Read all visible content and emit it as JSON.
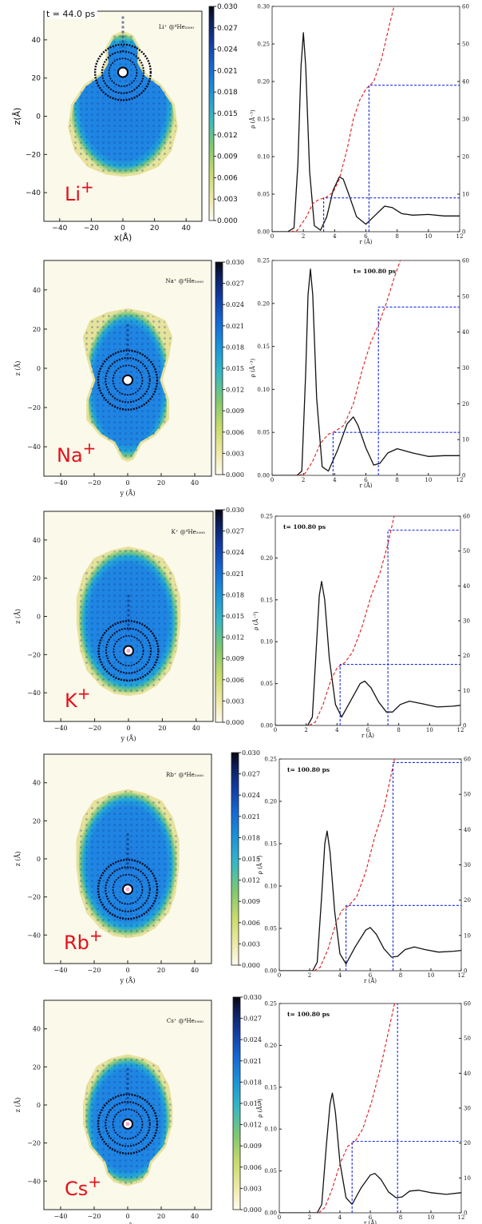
{
  "chart_data": [
    {
      "panel": 1,
      "type": "heatmap",
      "ion_label": "Li+",
      "label_inset": "Li⁺ @⁴He₂₀₀₀",
      "time_label": "t = 44.0 ps",
      "xlabel": "x(Å)",
      "ylabel": "z(Å)",
      "xticks": [
        "−40",
        "−20",
        "0",
        "20",
        "40"
      ],
      "yticks": [
        "40",
        "20",
        "0",
        "−20",
        "−40"
      ],
      "colorbar_ticks": [
        "0.030",
        "0.027",
        "0.024",
        "0.021",
        "0.018",
        "0.015",
        "0.012",
        "0.009",
        "0.006",
        "0.003",
        "0.000"
      ],
      "ion_position_z": 23,
      "droplet_shape": "pear"
    },
    {
      "panel": 1,
      "type": "line",
      "title": "",
      "time_label": "",
      "xlabel": "r (Å)",
      "ylabel": "ρ (Å⁻³)",
      "xlim": [
        0,
        12
      ],
      "ylim": [
        0,
        0.3
      ],
      "y2lim": [
        0,
        60
      ],
      "xticks": [
        "0",
        "2",
        "4",
        "6",
        "8",
        "10",
        "12"
      ],
      "yticks": [
        "0.00",
        "0.05",
        "0.10",
        "0.15",
        "0.20",
        "0.25",
        "0.30"
      ],
      "y2ticks": [
        "0",
        "10",
        "20",
        "30",
        "40",
        "50",
        "60"
      ],
      "series": [
        {
          "color": "#111111",
          "style": "solid",
          "x": [
            0,
            1,
            1.4,
            1.65,
            1.85,
            2.0,
            2.15,
            2.4,
            2.7,
            3.1,
            3.5,
            3.9,
            4.3,
            4.55,
            4.9,
            5.4,
            6.0,
            6.6,
            7.2,
            7.7,
            8.3,
            9.0,
            10,
            11,
            12
          ],
          "y": [
            0,
            0,
            0.005,
            0.09,
            0.22,
            0.265,
            0.22,
            0.08,
            0.008,
            0.002,
            0.02,
            0.055,
            0.073,
            0.07,
            0.05,
            0.02,
            0.01,
            0.022,
            0.034,
            0.032,
            0.024,
            0.022,
            0.023,
            0.021,
            0.021
          ]
        },
        {
          "color": "#e01a1a",
          "style": "dashed",
          "axis": "right",
          "x": [
            1.2,
            1.6,
            2.2,
            2.6,
            3.0,
            3.4,
            3.9,
            4.3,
            4.8,
            5.2,
            5.6,
            6.0,
            6.5,
            7.0,
            7.5,
            7.8
          ],
          "y": [
            0,
            0.3,
            4,
            7.5,
            8.6,
            9.0,
            10.5,
            14,
            22,
            30,
            35,
            38,
            40,
            46,
            55,
            60
          ]
        },
        {
          "color": "#1a2ae0",
          "style": "dotted",
          "axis": "right",
          "x": [
            3.3,
            3.3,
            3.3,
            12
          ],
          "y": [
            0,
            9,
            9,
            9
          ]
        },
        {
          "color": "#1a2ae0",
          "style": "dotted",
          "axis": "right",
          "x": [
            6.2,
            6.2,
            6.2,
            12
          ],
          "y": [
            0,
            39,
            39,
            39
          ]
        }
      ]
    },
    {
      "panel": 2,
      "type": "heatmap",
      "ion_label": "Na+",
      "label_inset": "Na⁺ @⁴He₂₀₀₀",
      "xlabel": "y (Å)",
      "ylabel": "z (Å)",
      "xticks": [
        "−40",
        "−20",
        "0",
        "20",
        "40"
      ],
      "yticks": [
        "40",
        "20",
        "0",
        "−20",
        "−40"
      ],
      "colorbar_ticks": [
        "0.030",
        "0.027",
        "0.024",
        "0.021",
        "0.018",
        "0.015",
        "0.012",
        "0.009",
        "0.006",
        "0.003",
        "0.000"
      ],
      "ion_position_z": -6,
      "droplet_shape": "peanut"
    },
    {
      "panel": 2,
      "type": "line",
      "time_label": "t= 100.80 ps",
      "xlabel": "r (Å)",
      "ylabel": "ρ (Å⁻³)",
      "xlim": [
        0,
        12
      ],
      "ylim": [
        0,
        0.25
      ],
      "y2lim": [
        0,
        60
      ],
      "xticks": [
        "0",
        "2",
        "4",
        "6",
        "8",
        "10",
        "12"
      ],
      "yticks": [
        "0.00",
        "0.05",
        "0.10",
        "0.15",
        "0.20",
        "0.25"
      ],
      "y2ticks": [
        "0",
        "10",
        "20",
        "30",
        "40",
        "50",
        "60"
      ],
      "series": [
        {
          "color": "#111111",
          "style": "solid",
          "x": [
            0,
            1.6,
            1.9,
            2.15,
            2.3,
            2.45,
            2.6,
            2.85,
            3.2,
            3.6,
            4.2,
            4.8,
            5.2,
            5.5,
            6.0,
            6.5,
            6.9,
            7.4,
            8.0,
            9.0,
            10,
            11,
            12
          ],
          "y": [
            0,
            0,
            0.005,
            0.12,
            0.21,
            0.24,
            0.21,
            0.09,
            0.01,
            0.005,
            0.03,
            0.06,
            0.068,
            0.058,
            0.032,
            0.012,
            0.014,
            0.026,
            0.031,
            0.026,
            0.022,
            0.023,
            0.023
          ]
        },
        {
          "color": "#e01a1a",
          "style": "dashed",
          "axis": "right",
          "x": [
            1.7,
            2.1,
            2.6,
            3.1,
            3.6,
            4.0,
            4.6,
            5.2,
            5.8,
            6.3,
            6.8,
            7.3,
            7.8,
            8.2
          ],
          "y": [
            0,
            0.5,
            4,
            9,
            11.5,
            12.2,
            14,
            20,
            30,
            37,
            42,
            48,
            55,
            60
          ]
        },
        {
          "color": "#1a2ae0",
          "style": "dotted",
          "axis": "right",
          "x": [
            3.9,
            3.9,
            3.9,
            12
          ],
          "y": [
            0,
            12,
            12,
            12
          ]
        },
        {
          "color": "#1a2ae0",
          "style": "dotted",
          "axis": "right",
          "x": [
            6.8,
            6.8,
            6.8,
            12
          ],
          "y": [
            0,
            47,
            47,
            47
          ]
        }
      ]
    },
    {
      "panel": 3,
      "type": "heatmap",
      "ion_label": "K+",
      "label_inset": "K⁺ @⁴He₂₀₀₀",
      "xlabel": "y (Å)",
      "ylabel": "z (Å)",
      "xticks": [
        "−40",
        "−20",
        "0",
        "20",
        "40"
      ],
      "yticks": [
        "40",
        "20",
        "0",
        "−20",
        "−40"
      ],
      "colorbar_ticks": [
        "0.030",
        "0.027",
        "0.024",
        "0.021",
        "0.018",
        "0.015",
        "0.012",
        "0.009",
        "0.006",
        "0.003",
        "0.000"
      ],
      "ion_position_z": -18,
      "droplet_shape": "egg"
    },
    {
      "panel": 3,
      "type": "line",
      "time_label": "t= 100.80 ps",
      "xlabel": "r (Å)",
      "ylabel": "ρ (Å⁻³)",
      "xlim": [
        0,
        12
      ],
      "ylim": [
        0,
        0.25
      ],
      "y2lim": [
        0,
        60
      ],
      "xticks": [
        "0",
        "2",
        "4",
        "6",
        "8",
        "10",
        "12"
      ],
      "yticks": [
        "0.00",
        "0.05",
        "0.10",
        "0.15",
        "0.20",
        "0.25"
      ],
      "y2ticks": [
        "0",
        "10",
        "20",
        "30",
        "40",
        "50",
        "60"
      ],
      "series": [
        {
          "color": "#111111",
          "style": "solid",
          "x": [
            0,
            2.1,
            2.4,
            2.65,
            2.85,
            3.0,
            3.2,
            3.5,
            3.9,
            4.3,
            4.9,
            5.5,
            5.8,
            6.2,
            6.7,
            7.2,
            7.6,
            8.1,
            8.7,
            9.5,
            10.5,
            11.5,
            12
          ],
          "y": [
            0,
            0,
            0.01,
            0.09,
            0.155,
            0.172,
            0.15,
            0.08,
            0.025,
            0.01,
            0.03,
            0.05,
            0.053,
            0.045,
            0.028,
            0.016,
            0.016,
            0.025,
            0.029,
            0.026,
            0.022,
            0.023,
            0.024
          ]
        },
        {
          "color": "#e01a1a",
          "style": "dashed",
          "axis": "right",
          "x": [
            2.2,
            2.6,
            3.1,
            3.6,
            4.0,
            4.5,
            5.0,
            5.6,
            6.2,
            6.8,
            7.3,
            7.7
          ],
          "y": [
            0,
            1,
            6,
            13,
            16.5,
            18,
            21,
            28,
            37,
            44,
            52,
            60
          ]
        },
        {
          "color": "#1a2ae0",
          "style": "dotted",
          "axis": "right",
          "x": [
            4.2,
            4.2,
            4.2,
            12
          ],
          "y": [
            0,
            17.5,
            17.5,
            17.5
          ]
        },
        {
          "color": "#1a2ae0",
          "style": "dotted",
          "axis": "right",
          "x": [
            7.3,
            7.3,
            7.3,
            12
          ],
          "y": [
            0,
            56,
            56,
            56
          ]
        }
      ]
    },
    {
      "panel": 4,
      "type": "heatmap",
      "ion_label": "Rb+",
      "label_inset": "Rb⁺ @⁴He₂₀₀₀",
      "xlabel": "y (Å)",
      "ylabel": "z (Å)",
      "xticks": [
        "−40",
        "−20",
        "0",
        "20",
        "40"
      ],
      "yticks": [
        "40",
        "20",
        "0",
        "−20",
        "−40"
      ],
      "colorbar_ticks": [
        "0.030",
        "0.027",
        "0.024",
        "0.021",
        "0.018",
        "0.015",
        "0.012",
        "0.009",
        "0.006",
        "0.003",
        "0.000"
      ],
      "ion_position_z": -16,
      "droplet_shape": "egg"
    },
    {
      "panel": 4,
      "type": "line",
      "time_label": "t= 100.80 ps",
      "xlabel": "r (Å)",
      "ylabel": "ρ (Å⁻³)",
      "xlim": [
        0,
        12
      ],
      "ylim": [
        0,
        0.25
      ],
      "y2lim": [
        0,
        60
      ],
      "xticks": [
        "0",
        "2",
        "4",
        "6",
        "8",
        "10",
        "12"
      ],
      "yticks": [
        "0.00",
        "0.05",
        "0.10",
        "0.15",
        "0.20",
        "0.25"
      ],
      "y2ticks": [
        "0",
        "10",
        "20",
        "30",
        "40",
        "50",
        "60"
      ],
      "series": [
        {
          "color": "#111111",
          "style": "solid",
          "x": [
            0,
            2.2,
            2.5,
            2.8,
            3.0,
            3.15,
            3.35,
            3.65,
            4.0,
            4.4,
            5.0,
            5.7,
            6.0,
            6.4,
            6.9,
            7.4,
            7.8,
            8.3,
            8.9,
            9.6,
            10.5,
            11.5,
            12
          ],
          "y": [
            0,
            0,
            0.01,
            0.09,
            0.15,
            0.165,
            0.14,
            0.07,
            0.02,
            0.008,
            0.028,
            0.048,
            0.051,
            0.043,
            0.026,
            0.016,
            0.017,
            0.025,
            0.028,
            0.025,
            0.022,
            0.023,
            0.024
          ]
        },
        {
          "color": "#e01a1a",
          "style": "dashed",
          "axis": "right",
          "x": [
            2.3,
            2.7,
            3.2,
            3.7,
            4.1,
            4.6,
            5.1,
            5.7,
            6.3,
            6.9,
            7.3,
            7.6
          ],
          "y": [
            0,
            1,
            6,
            13,
            17,
            18.5,
            21,
            28,
            38,
            46,
            54,
            60
          ]
        },
        {
          "color": "#1a2ae0",
          "style": "dotted",
          "axis": "right",
          "x": [
            4.4,
            4.4,
            4.4,
            12
          ],
          "y": [
            0,
            18.5,
            18.5,
            18.5
          ]
        },
        {
          "color": "#1a2ae0",
          "style": "dotted",
          "axis": "right",
          "x": [
            7.5,
            7.5,
            7.5,
            12
          ],
          "y": [
            0,
            59,
            59,
            59
          ]
        }
      ]
    },
    {
      "panel": 5,
      "type": "heatmap",
      "ion_label": "Cs+",
      "label_inset": "Cs⁺ @⁴He₂₀₀₀",
      "xlabel": "y (Å)",
      "ylabel": "z (Å)",
      "xticks": [
        "−40",
        "−20",
        "0",
        "20",
        "40"
      ],
      "yticks": [
        "40",
        "20",
        "0",
        "−20",
        "−40"
      ],
      "colorbar_ticks": [
        "0.030",
        "0.027",
        "0.024",
        "0.021",
        "0.018",
        "0.015",
        "0.012",
        "0.009",
        "0.006",
        "0.003",
        "0.000"
      ],
      "ion_position_z": -10,
      "droplet_shape": "pear-inverted"
    },
    {
      "panel": 5,
      "type": "line",
      "time_label": "t= 100.80 ps",
      "xlabel": "r (Å)",
      "ylabel": "ρ (Å⁻³)",
      "xlim": [
        0,
        12
      ],
      "ylim": [
        0,
        0.25
      ],
      "y2lim": [
        0,
        60
      ],
      "xticks": [
        "0",
        "2",
        "4",
        "6",
        "8",
        "10",
        "12"
      ],
      "yticks": [
        "0.00",
        "0.05",
        "0.10",
        "0.15",
        "0.20",
        "0.25"
      ],
      "y2ticks": [
        "0",
        "10",
        "20",
        "30",
        "40",
        "50",
        "60"
      ],
      "series": [
        {
          "color": "#111111",
          "style": "solid",
          "x": [
            0,
            2.5,
            2.8,
            3.1,
            3.35,
            3.5,
            3.7,
            4.0,
            4.4,
            4.8,
            5.4,
            6.0,
            6.3,
            6.7,
            7.2,
            7.7,
            8.1,
            8.6,
            9.2,
            10,
            11,
            12
          ],
          "y": [
            0,
            0,
            0.01,
            0.08,
            0.13,
            0.143,
            0.12,
            0.06,
            0.018,
            0.01,
            0.03,
            0.045,
            0.047,
            0.04,
            0.025,
            0.018,
            0.019,
            0.026,
            0.027,
            0.024,
            0.022,
            0.024
          ]
        },
        {
          "color": "#e01a1a",
          "style": "dashed",
          "axis": "right",
          "x": [
            2.6,
            3.0,
            3.5,
            4.0,
            4.5,
            5.0,
            5.5,
            6.1,
            6.7,
            7.2,
            7.6
          ],
          "y": [
            0,
            1.5,
            7,
            14,
            19,
            20.5,
            24,
            32,
            42,
            52,
            60
          ]
        },
        {
          "color": "#1a2ae0",
          "style": "dotted",
          "axis": "right",
          "x": [
            4.8,
            4.8,
            4.8,
            12
          ],
          "y": [
            0,
            20.5,
            20.5,
            20.5
          ]
        },
        {
          "color": "#1a2ae0",
          "style": "dotted",
          "axis": "right",
          "x": [
            7.8,
            7.8
          ],
          "y": [
            0,
            60
          ]
        }
      ]
    }
  ]
}
